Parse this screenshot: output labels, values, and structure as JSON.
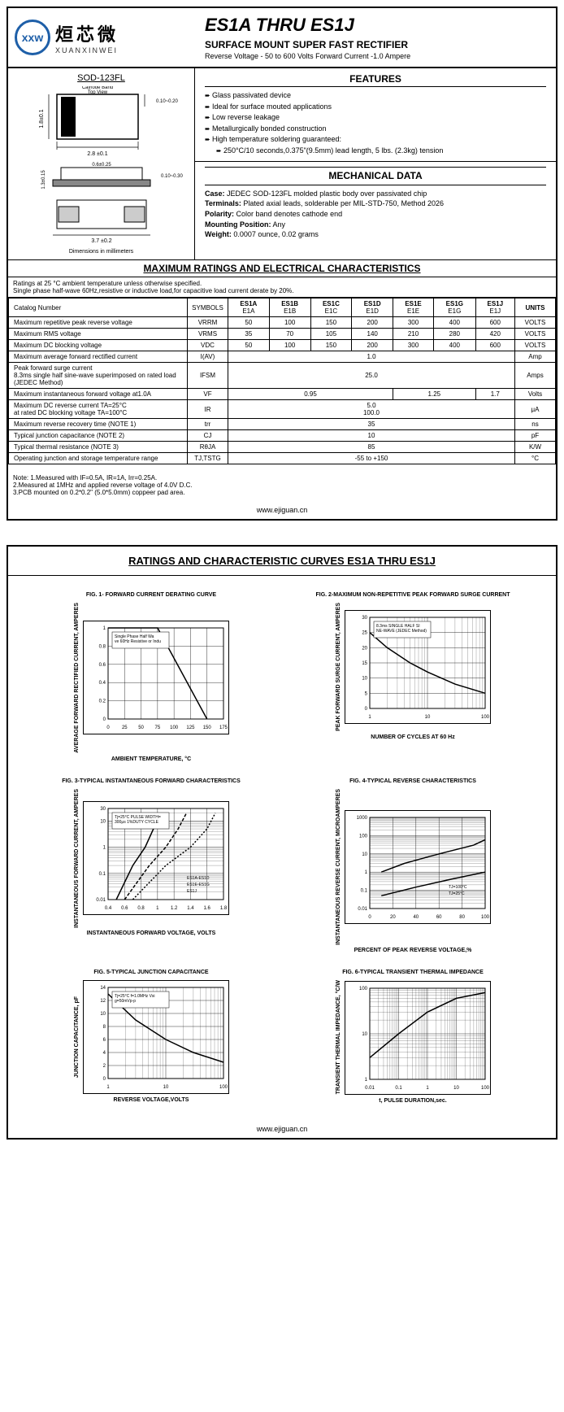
{
  "logo": {
    "abbr": "xxw",
    "cn": "烜芯微",
    "en": "XUANXINWEI"
  },
  "header": {
    "title": "ES1A THRU ES1J",
    "subtitle": "SURFACE MOUNT SUPER FAST RECTIFIER",
    "desc": "Reverse Voltage - 50 to 600 Volts    Forward Current -1.0 Ampere"
  },
  "package": {
    "name": "SOD-123FL",
    "dim_note": "Dimensions in millimeters",
    "dims": {
      "w": "2.8 ±0.1",
      "h": "1.8±0.1",
      "t1": "0.10~0.20",
      "t2": "0.10~0.30",
      "l1": "0.6±0.25",
      "l2": "3.7 ±0.2",
      "h2": "1.3±0.15",
      "cb": "Cathode Band Top View"
    }
  },
  "features": {
    "title": "FEATURES",
    "items": [
      "Glass passivated device",
      "Ideal for surface mouted applications",
      "Low reverse leakage",
      "Metallurgically bonded construction",
      "High temperature soldering guaranteed:",
      "250°C/10 seconds,0.375\"(9.5mm) lead length, 5 lbs. (2.3kg) tension"
    ]
  },
  "mechanical": {
    "title": "MECHANICAL DATA",
    "case_lbl": "Case:",
    "case": "JEDEC SOD-123FL molded plastic body over passivated chip",
    "term_lbl": "Terminals:",
    "term": "Plated axial leads, solderable per MIL-STD-750, Method 2026",
    "pol_lbl": "Polarity:",
    "pol": "Color band denotes cathode end",
    "mount_lbl": "Mounting Position:",
    "mount": "Any",
    "wt_lbl": "Weight:",
    "wt": "0.0007 ounce, 0.02 grams"
  },
  "ratings": {
    "section_title": "MAXIMUM RATINGS AND ELECTRICAL CHARACTERISTICS",
    "note": "Ratings at 25 °C ambient temperature unless otherwise specified.\nSingle phase half-wave 60Hz,resistive or inductive load,for capacitive load current derate by 20%.",
    "catalog_lbl": "Catalog          Number",
    "symbols_lbl": "SYMBOLS",
    "units_lbl": "UNITS",
    "parts": [
      {
        "a": "ES1A",
        "b": "E1A"
      },
      {
        "a": "ES1B",
        "b": "E1B"
      },
      {
        "a": "ES1C",
        "b": "E1C"
      },
      {
        "a": "ES1D",
        "b": "E1D"
      },
      {
        "a": "ES1E",
        "b": "E1E"
      },
      {
        "a": "ES1G",
        "b": "E1G"
      },
      {
        "a": "ES1J",
        "b": "E1J"
      }
    ],
    "rows": [
      {
        "p": "Maximum repetitive peak reverse voltage",
        "s": "VRRM",
        "v": [
          "50",
          "100",
          "150",
          "200",
          "300",
          "400",
          "600"
        ],
        "u": "VOLTS"
      },
      {
        "p": "Maximum RMS voltage",
        "s": "VRMS",
        "v": [
          "35",
          "70",
          "105",
          "140",
          "210",
          "280",
          "420"
        ],
        "u": "VOLTS"
      },
      {
        "p": "Maximum DC blocking voltage",
        "s": "VDC",
        "v": [
          "50",
          "100",
          "150",
          "200",
          "300",
          "400",
          "600"
        ],
        "u": "VOLTS"
      }
    ],
    "merged_rows": [
      {
        "p": "Maximum average forward rectified current",
        "s": "I(AV)",
        "v": "1.0",
        "u": "Amp"
      },
      {
        "p": "Peak forward surge current\n8.3ms single half sine-wave superimposed on rated load (JEDEC Method)",
        "s": "IFSM",
        "v": "25.0",
        "u": "Amps"
      }
    ],
    "vf_row": {
      "p": "Maximum instantaneous forward voltage at1.0A",
      "s": "VF",
      "v1": "0.95",
      "v2": "1.25",
      "v3": "1.7",
      "u": "Volts"
    },
    "ir_row": {
      "p": "Maximum DC reverse current     TA=25°C\nat rated DC blocking voltage       TA=100°C",
      "s": "IR",
      "v1": "5.0",
      "v2": "100.0",
      "u": "μA"
    },
    "simple_rows": [
      {
        "p": "Maximum reverse recovery time   (NOTE 1)",
        "s": "trr",
        "v": "35",
        "u": "ns"
      },
      {
        "p": "Typical junction capacitance    (NOTE 2)",
        "s": "CJ",
        "v": "10",
        "u": "pF"
      },
      {
        "p": "Typical thermal resistance (NOTE 3)",
        "s": "RθJA",
        "v": "85",
        "u": "K/W"
      },
      {
        "p": "Operating junction and storage temperature range",
        "s": "TJ,TSTG",
        "v": "-55 to +150",
        "u": "°C"
      }
    ]
  },
  "footnotes": "Note: 1.Measured with IF=0.5A, IR=1A, Irr=0.25A.\n          2.Measured at 1MHz and applied reverse voltage of 4.0V D.C.\n          3.PCB mounted on 0.2*0.2\" (5.0*5.0mm) coppeer pad area.",
  "url": "www.ejiguan.cn",
  "page2_title": "RATINGS AND CHARACTERISTIC CURVES ES1A THRU ES1J",
  "charts": [
    {
      "title": "FIG. 1- FORWARD CURRENT DERATING CURVE",
      "ylabel": "AVERAGE FORWARD RECTIFIED CURRENT, AMPERES",
      "xlabel": "AMBIENT TEMPERATURE, °C",
      "type": "line",
      "xscale": "linear",
      "yscale": "linear",
      "xlim": [
        0,
        175
      ],
      "ylim": [
        0,
        1.0
      ],
      "xticks": [
        0,
        25,
        50,
        75,
        100,
        125,
        150,
        175
      ],
      "yticks": [
        0,
        0.2,
        0.4,
        0.6,
        0.8,
        1.0
      ],
      "series": [
        {
          "color": "#000",
          "pts": [
            [
              0,
              1.0
            ],
            [
              75,
              1.0
            ],
            [
              150,
              0
            ]
          ]
        }
      ],
      "annot": "Single Phase Half Wave 60Hz Resistive or Inductive Load"
    },
    {
      "title": "FIG. 2-MAXIMUM NON-REPETITIVE PEAK FORWARD SURGE CURRENT",
      "ylabel": "PEAK FORWARD SURGE CURRENT, AMPERES",
      "xlabel": "NUMBER OF CYCLES AT 60 Hz",
      "type": "line",
      "xscale": "log",
      "yscale": "linear",
      "xlim": [
        1,
        100
      ],
      "ylim": [
        0,
        30
      ],
      "xticks": [
        1,
        10,
        100
      ],
      "yticks": [
        0,
        5,
        10,
        15,
        20,
        25,
        30
      ],
      "series": [
        {
          "color": "#000",
          "pts": [
            [
              1,
              25
            ],
            [
              2,
              20
            ],
            [
              5,
              15
            ],
            [
              10,
              12
            ],
            [
              30,
              8
            ],
            [
              100,
              5
            ]
          ]
        }
      ],
      "annot": "8.3ms SINGLE HALF SINE-WAVE (JEDEC Method)"
    },
    {
      "title": "FIG. 3-TYPICAL INSTANTANEOUS FORWARD CHARACTERISTICS",
      "ylabel": "INSTANTANEOUS FORWARD CURRENT, AMPERES",
      "xlabel": "INSTANTANEOUS FORWARD VOLTAGE, VOLTS",
      "type": "line",
      "xscale": "linear",
      "yscale": "log",
      "xlim": [
        0.4,
        1.8
      ],
      "ylim": [
        0.01,
        30
      ],
      "xticks": [
        0.4,
        0.6,
        0.8,
        1,
        1.2,
        1.4,
        1.6,
        1.8
      ],
      "yticks": [
        0.01,
        0.1,
        1,
        10,
        30
      ],
      "series": [
        {
          "color": "#000",
          "label": "ES1A-ES1D",
          "pts": [
            [
              0.5,
              0.01
            ],
            [
              0.7,
              0.2
            ],
            [
              0.85,
              1
            ],
            [
              0.95,
              5
            ],
            [
              1.0,
              20
            ]
          ]
        },
        {
          "color": "#000",
          "label": "ES1E-ES1G",
          "dash": "4,2",
          "pts": [
            [
              0.6,
              0.01
            ],
            [
              0.9,
              0.2
            ],
            [
              1.1,
              1
            ],
            [
              1.25,
              5
            ],
            [
              1.35,
              20
            ]
          ]
        },
        {
          "color": "#000",
          "label": "ES1J",
          "dash": "2,2",
          "pts": [
            [
              0.7,
              0.01
            ],
            [
              1.1,
              0.2
            ],
            [
              1.4,
              1
            ],
            [
              1.6,
              5
            ],
            [
              1.7,
              20
            ]
          ]
        }
      ],
      "annot": "Tj=25°C PULSE WIDTH=300μs 1%DUTY CYCLE"
    },
    {
      "title": "FIG. 4-TYPICAL REVERSE CHARACTERISTICS",
      "ylabel": "INSTANTANEOUS REVERSE CURRENT, MICROAMPERES",
      "xlabel": "PERCENT OF PEAK REVERSE VOLTAGE,%",
      "type": "line",
      "xscale": "linear",
      "yscale": "log",
      "xlim": [
        0,
        100
      ],
      "ylim": [
        0.01,
        1000
      ],
      "xticks": [
        0,
        20,
        40,
        60,
        80,
        100
      ],
      "yticks": [
        0.01,
        0.1,
        1,
        10,
        100,
        1000
      ],
      "series": [
        {
          "color": "#000",
          "label": "TJ=100°C",
          "pts": [
            [
              10,
              1
            ],
            [
              30,
              3
            ],
            [
              60,
              10
            ],
            [
              90,
              30
            ],
            [
              100,
              60
            ]
          ]
        },
        {
          "color": "#000",
          "label": "TJ=25°C",
          "pts": [
            [
              10,
              0.05
            ],
            [
              40,
              0.15
            ],
            [
              70,
              0.4
            ],
            [
              100,
              1
            ]
          ]
        }
      ]
    },
    {
      "title": "FIG. 5-TYPICAL JUNCTION CAPACITANCE",
      "ylabel": "JUNCTION CAPACITANCE, pF",
      "xlabel": "REVERSE VOLTAGE,VOLTS",
      "type": "line",
      "xscale": "log",
      "yscale": "linear",
      "xlim": [
        1,
        100
      ],
      "ylim": [
        0,
        14
      ],
      "xticks": [
        1,
        10,
        100
      ],
      "yticks": [
        0,
        2,
        4,
        6,
        8,
        10,
        12,
        14
      ],
      "series": [
        {
          "color": "#000",
          "pts": [
            [
              1,
              13
            ],
            [
              3,
              9
            ],
            [
              10,
              6
            ],
            [
              30,
              4
            ],
            [
              100,
              2.5
            ]
          ]
        }
      ],
      "annot": "Tj=25°C f=1.0MHz Vsig=50mVp-p"
    },
    {
      "title": "FIG. 6-TYPICAL TRANSIENT THERMAL IMPEDANCE",
      "ylabel": "TRANSIENT THERMAL IMPEDANCE, °C/W",
      "xlabel": "t, PULSE DURATION,sec.",
      "type": "line",
      "xscale": "log",
      "yscale": "log",
      "xlim": [
        0.01,
        100
      ],
      "ylim": [
        1,
        100
      ],
      "xticks": [
        0.01,
        0.1,
        1,
        10,
        100
      ],
      "yticks": [
        1,
        10,
        100
      ],
      "series": [
        {
          "color": "#000",
          "pts": [
            [
              0.01,
              3
            ],
            [
              0.1,
              10
            ],
            [
              1,
              30
            ],
            [
              10,
              60
            ],
            [
              100,
              80
            ]
          ]
        }
      ]
    }
  ],
  "colors": {
    "grid": "#000",
    "bg": "#fff",
    "line": "#000"
  }
}
